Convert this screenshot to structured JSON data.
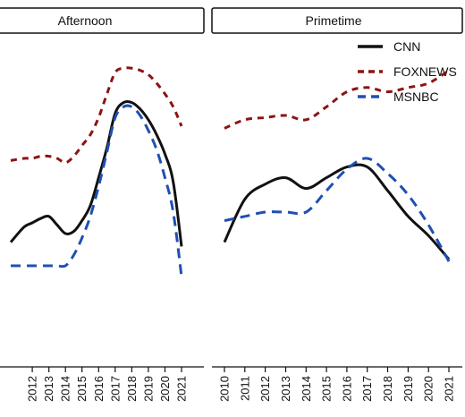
{
  "chart_data": [
    {
      "type": "line",
      "title": "Afternoon",
      "x": [
        "2012",
        "2013",
        "2014",
        "2015",
        "2016",
        "2017",
        "2018",
        "2019",
        "2020",
        "2021"
      ],
      "x_values": [
        2012,
        2013,
        2014,
        2015,
        2016,
        2017,
        2018,
        2019,
        2020,
        2021
      ],
      "series": [
        {
          "name": "CNN",
          "x": [
            2010.7,
            2011.5,
            2012,
            2012.5,
            2013,
            2013.5,
            2014,
            2014.5,
            2015,
            2015.5,
            2016,
            2016.5,
            2017,
            2017.5,
            2018,
            2018.5,
            2019,
            2019.5,
            2020,
            2020.5,
            2021
          ],
          "values": [
            2.6,
            3.3,
            3.5,
            3.7,
            3.8,
            3.4,
            3.0,
            3.1,
            3.6,
            4.3,
            5.6,
            7.0,
            8.6,
            9.1,
            9.1,
            8.8,
            8.3,
            7.6,
            6.7,
            5.4,
            2.4
          ]
        },
        {
          "name": "FOXNEWS",
          "x": [
            2010.7,
            2011.5,
            2012,
            2012.5,
            2013,
            2013.5,
            2014,
            2014.5,
            2015,
            2015.5,
            2016,
            2016.5,
            2017,
            2017.5,
            2018,
            2018.5,
            2019,
            2019.5,
            2020,
            2020.5,
            2021
          ],
          "values": [
            6.4,
            6.5,
            6.5,
            6.6,
            6.6,
            6.5,
            6.3,
            6.6,
            7.1,
            7.6,
            8.4,
            9.5,
            10.5,
            10.7,
            10.7,
            10.6,
            10.4,
            10.0,
            9.5,
            8.9,
            8.0
          ]
        },
        {
          "name": "MSNBC",
          "x": [
            2010.7,
            2011.5,
            2012,
            2012.5,
            2013,
            2013.5,
            2014,
            2014.5,
            2015,
            2015.5,
            2016,
            2016.5,
            2017,
            2017.5,
            2018,
            2018.5,
            2019,
            2019.5,
            2020,
            2020.5,
            2021
          ],
          "values": [
            1.5,
            1.5,
            1.5,
            1.5,
            1.5,
            1.5,
            1.5,
            2.0,
            2.8,
            3.8,
            5.2,
            6.8,
            8.4,
            8.9,
            8.9,
            8.5,
            7.8,
            6.9,
            5.6,
            4.0,
            1.0
          ]
        }
      ],
      "ylim": [
        -3,
        12
      ],
      "xlim": [
        2010.7,
        2021.7
      ]
    },
    {
      "type": "line",
      "title": "Primetime",
      "x": [
        "2010",
        "2011",
        "2012",
        "2013",
        "2014",
        "2015",
        "2016",
        "2017",
        "2018",
        "2019",
        "2020",
        "2021"
      ],
      "x_values": [
        2010,
        2011,
        2012,
        2013,
        2014,
        2015,
        2016,
        2017,
        2018,
        2019,
        2020,
        2021
      ],
      "series": [
        {
          "name": "CNN",
          "x": [
            2010,
            2011,
            2012,
            2013,
            2014,
            2015,
            2016,
            2017,
            2018,
            2019,
            2020,
            2021
          ],
          "values": [
            2.6,
            4.6,
            5.3,
            5.6,
            5.1,
            5.6,
            6.1,
            6.1,
            5.0,
            3.8,
            2.9,
            1.8
          ]
        },
        {
          "name": "FOXNEWS",
          "x": [
            2010,
            2011,
            2012,
            2013,
            2014,
            2015,
            2016,
            2017,
            2018,
            2019,
            2020,
            2021
          ],
          "values": [
            7.9,
            8.3,
            8.4,
            8.5,
            8.3,
            8.9,
            9.6,
            9.8,
            9.6,
            9.8,
            10.0,
            10.6
          ]
        },
        {
          "name": "MSNBC",
          "x": [
            2010,
            2011,
            2012,
            2013,
            2014,
            2015,
            2016,
            2017,
            2018,
            2019,
            2020,
            2021
          ],
          "values": [
            3.6,
            3.8,
            4.0,
            4.0,
            4.0,
            5.0,
            6.0,
            6.5,
            5.8,
            4.8,
            3.4,
            1.7
          ]
        }
      ],
      "ylim": [
        -3,
        12
      ],
      "xlim": [
        2010,
        2021
      ]
    }
  ],
  "legend": {
    "placement": "top-right",
    "items": [
      {
        "label": "CNN",
        "color": "#111111",
        "dash": "solid"
      },
      {
        "label": "FOXNEWS",
        "color": "#8b1414",
        "dash": "dashed"
      },
      {
        "label": "MSNBC",
        "color": "#1f4fb4",
        "dash": "dashed"
      }
    ]
  },
  "colors": {
    "CNN": "#111111",
    "FOXNEWS": "#8b1414",
    "MSNBC": "#1f4fb4"
  }
}
